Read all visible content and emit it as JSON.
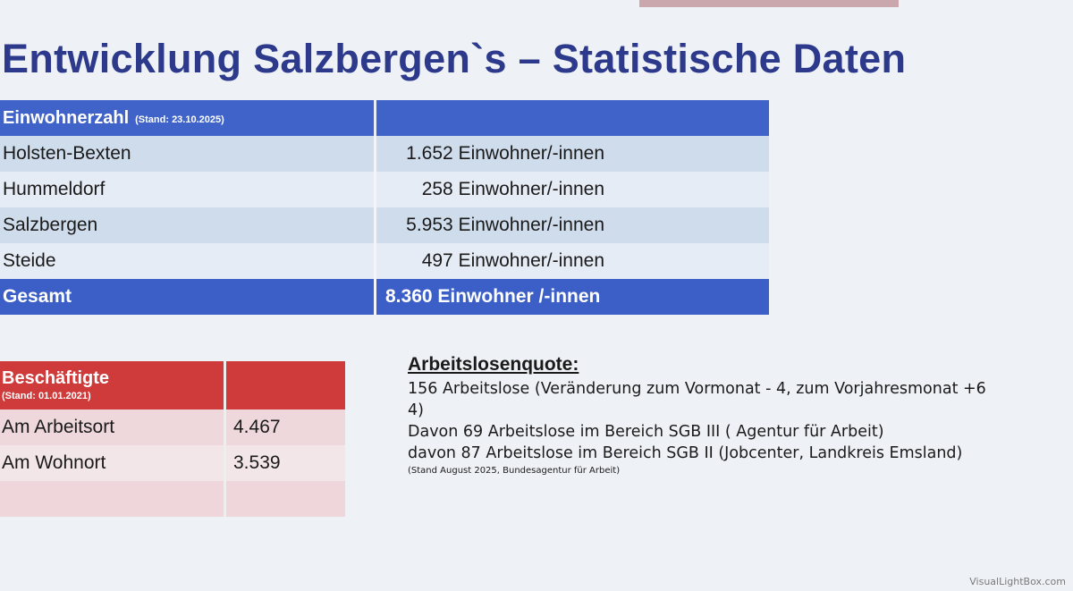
{
  "title": "Entwicklung Salzbergen`s – Statistische Daten",
  "population": {
    "header": "Einwohnerzahl",
    "header_note": "(Stand: 23.10.2025)",
    "rows": [
      {
        "name": "Holsten-Bexten",
        "value": "1.652 Einwohner/-innen"
      },
      {
        "name": "Hummeldorf",
        "value": "258 Einwohner/-innen"
      },
      {
        "name": "Salzbergen",
        "value": "5.953 Einwohner/-innen"
      },
      {
        "name": "Steide",
        "value": "497 Einwohner/-innen"
      }
    ],
    "total": {
      "name": "Gesamt",
      "value": "8.360 Einwohner /-innen"
    }
  },
  "employment": {
    "header": "Beschäftigte",
    "header_note": "(Stand: 01.01.2021)",
    "rows": [
      {
        "name": "Am Arbeitsort",
        "value": "4.467"
      },
      {
        "name": "Am Wohnort",
        "value": "3.539"
      }
    ]
  },
  "unemployment": {
    "heading": "Arbeitslosenquote:",
    "lines": [
      "156 Arbeitslose (Veränderung zum Vormonat - 4, zum Vorjahresmonat  +6",
      "4)",
      "Davon 69  Arbeitslose im Bereich SGB III ( Agentur für Arbeit)",
      "davon 87 Arbeitslose im Bereich  SGB II (Jobcenter, Landkreis Emsland)"
    ],
    "source": "(Stand August 2025, Bundesagentur für Arbeit)"
  },
  "watermark": "VisualLightBox.com",
  "colors": {
    "title": "#2d3a8c",
    "population_header": "#3f63c8",
    "employment_header": "#cf3a3a"
  }
}
